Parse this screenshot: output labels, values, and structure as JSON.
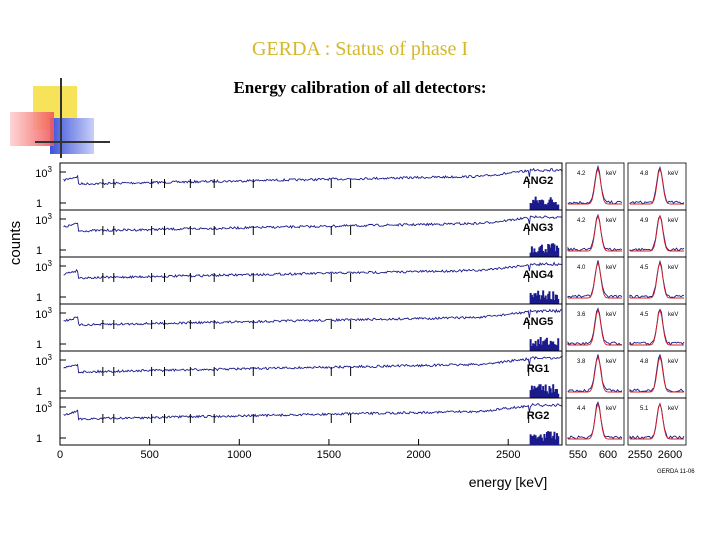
{
  "slide": {
    "title": "GERDA : Status of phase I",
    "subtitle": "Energy calibration of all detectors:"
  },
  "colors": {
    "title": "#d4b82a",
    "spectrum": "#1a1a8c",
    "fit": "#d42020",
    "deco_yellow": "#f7e35a",
    "deco_blue": "#4a5fe0",
    "deco_red": "#f06060"
  },
  "chart_data": {
    "type": "line",
    "ylabel": "counts",
    "xlabel": "energy [keV]",
    "y_scale": "log",
    "y_ticks": [
      "1",
      "10^3"
    ],
    "xlim": [
      0,
      2800
    ],
    "x_ticks": [
      0,
      500,
      1000,
      1500,
      2000,
      2500
    ],
    "detectors": [
      {
        "name": "ANG2",
        "zoom_fwhm_low": "4.2",
        "zoom_fwhm_high": "4.8",
        "unit": "keV"
      },
      {
        "name": "ANG3",
        "zoom_fwhm_low": "4.2",
        "zoom_fwhm_high": "4.9",
        "unit": "keV"
      },
      {
        "name": "ANG4",
        "zoom_fwhm_low": "4.0",
        "zoom_fwhm_high": "4.5",
        "unit": "keV"
      },
      {
        "name": "ANG5",
        "zoom_fwhm_low": "3.6",
        "zoom_fwhm_high": "4.5",
        "unit": "keV"
      },
      {
        "name": "RG1",
        "zoom_fwhm_low": "3.8",
        "zoom_fwhm_high": "4.8",
        "unit": "keV"
      },
      {
        "name": "RG2",
        "zoom_fwhm_low": "4.4",
        "zoom_fwhm_high": "5.1",
        "unit": "keV"
      }
    ],
    "zoom_low": {
      "x_ticks": [
        550,
        600
      ]
    },
    "zoom_high": {
      "x_ticks": [
        2550,
        2600
      ]
    },
    "peaks_keV": [
      239,
      300,
      511,
      583,
      727,
      860,
      1078,
      1513,
      1621,
      2614
    ],
    "watermark": "GERDA 11-06"
  }
}
